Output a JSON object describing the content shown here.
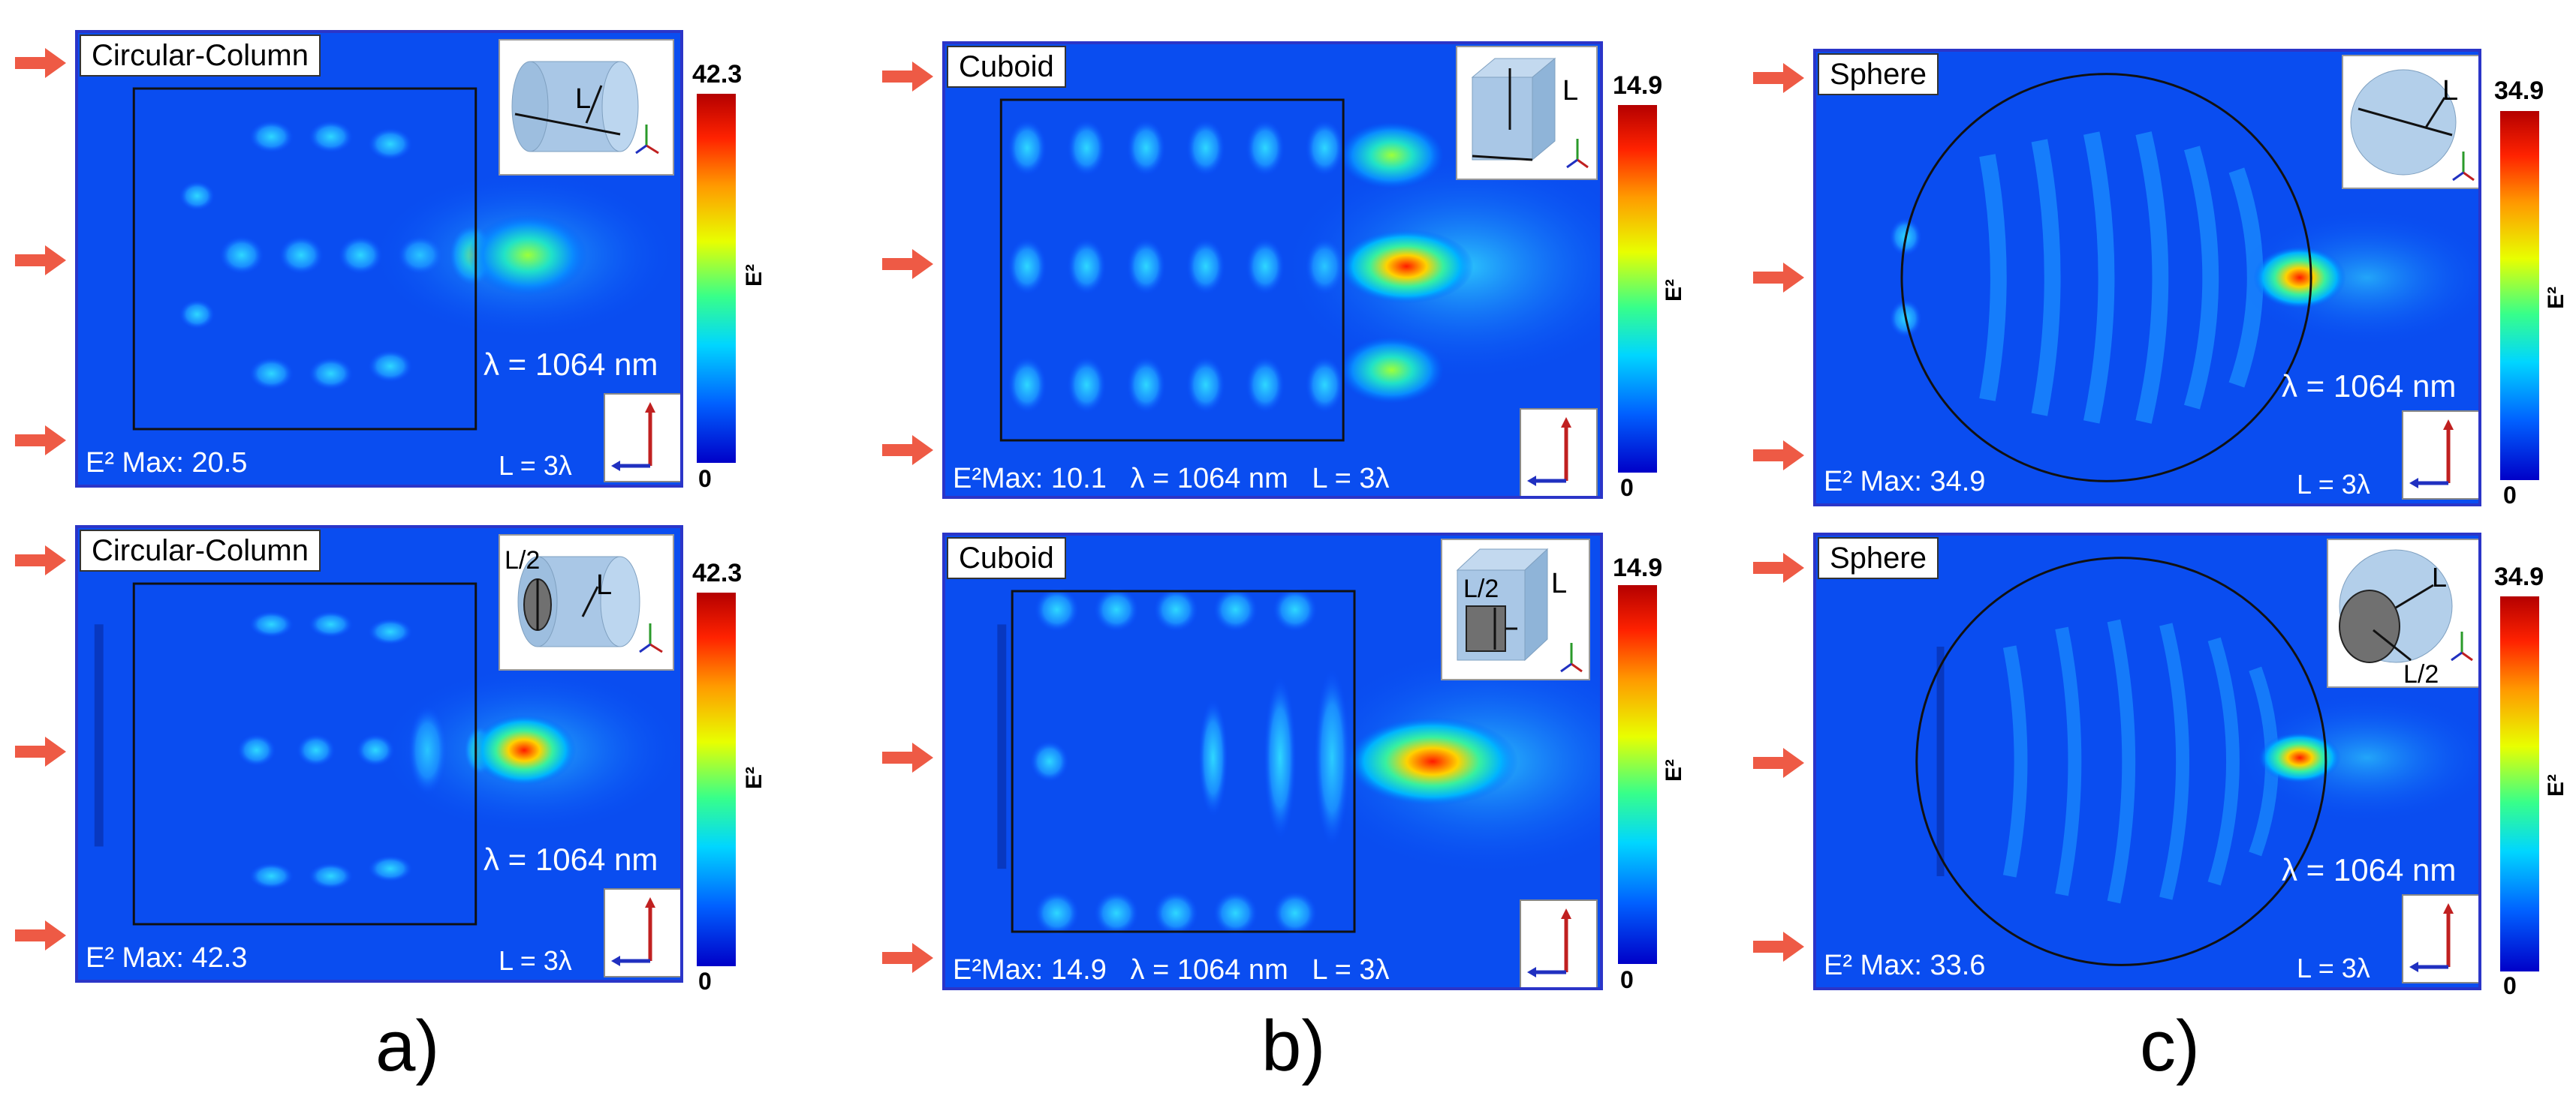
{
  "panels": {
    "a_top": {
      "shape": "Circular-Column",
      "wavelength": "λ = 1064 nm",
      "emax": "E² Max: 20.5",
      "size": "L = 3λ",
      "cbar_max": "42.3",
      "cbar_min": "0",
      "cbar_var": "E²"
    },
    "a_bot": {
      "shape": "Circular-Column",
      "wavelength": "λ = 1064 nm",
      "emax": "E² Max: 42.3",
      "size": "L = 3λ",
      "cbar_max": "42.3",
      "cbar_min": "0",
      "cbar_var": "E²"
    },
    "b_top": {
      "shape": "Cuboid",
      "bottom_line": "E²Max: 10.1   λ = 1064 nm   L = 3λ",
      "cbar_max": "14.9",
      "cbar_min": "0",
      "cbar_var": "E²"
    },
    "b_bot": {
      "shape": "Cuboid",
      "bottom_line": "E²Max: 14.9   λ = 1064 nm   L = 3λ",
      "cbar_max": "14.9",
      "cbar_min": "0",
      "cbar_var": "E²"
    },
    "c_top": {
      "shape": "Sphere",
      "wavelength": "λ = 1064 nm",
      "emax": "E² Max: 34.9",
      "size": "L = 3λ",
      "cbar_max": "34.9",
      "cbar_min": "0",
      "cbar_var": "E²"
    },
    "c_bot": {
      "shape": "Sphere",
      "wavelength": "λ = 1064 nm",
      "emax": "E² Max: 33.6",
      "size": "L = 3λ",
      "cbar_max": "34.9",
      "cbar_min": "0",
      "cbar_var": "E²"
    }
  },
  "insets": {
    "l": "L",
    "l_half": "L/2"
  },
  "captions": {
    "a": "a)",
    "b": "b)",
    "c": "c)"
  }
}
